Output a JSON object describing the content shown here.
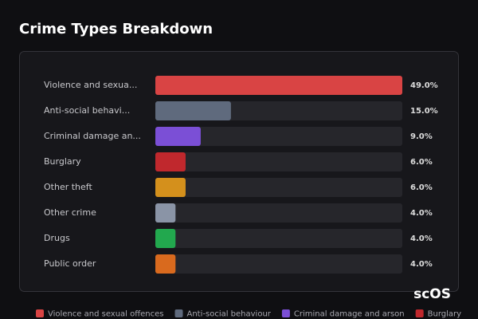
{
  "chart_data": {
    "type": "hbar",
    "title": "Crime Types Breakdown",
    "categories": [
      "Violence and sexua...",
      "Anti-social behavi...",
      "Criminal damage an...",
      "Burglary",
      "Other theft",
      "Other crime",
      "Drugs",
      "Public order"
    ],
    "values": [
      49,
      15,
      9,
      6,
      6,
      4,
      4,
      4
    ],
    "value_labels": [
      "49.0%",
      "15.0%",
      "9.0%",
      "6.0%",
      "6.0%",
      "4.0%",
      "4.0%",
      "4.0%"
    ],
    "colors": [
      "#d94444",
      "#5f6a7d",
      "#7b4fd6",
      "#c0282d",
      "#d4901c",
      "#8a94a6",
      "#22a84e",
      "#d96a1e"
    ],
    "xlim": [
      0,
      49
    ],
    "legend": [
      {
        "name": "Violence and sexual offences",
        "color": "#d94444"
      },
      {
        "name": "Anti-social behaviour",
        "color": "#5f6a7d"
      },
      {
        "name": "Criminal damage and arson",
        "color": "#7b4fd6"
      },
      {
        "name": "Burglary",
        "color": "#c0282d"
      }
    ],
    "watermark": "scOS"
  }
}
